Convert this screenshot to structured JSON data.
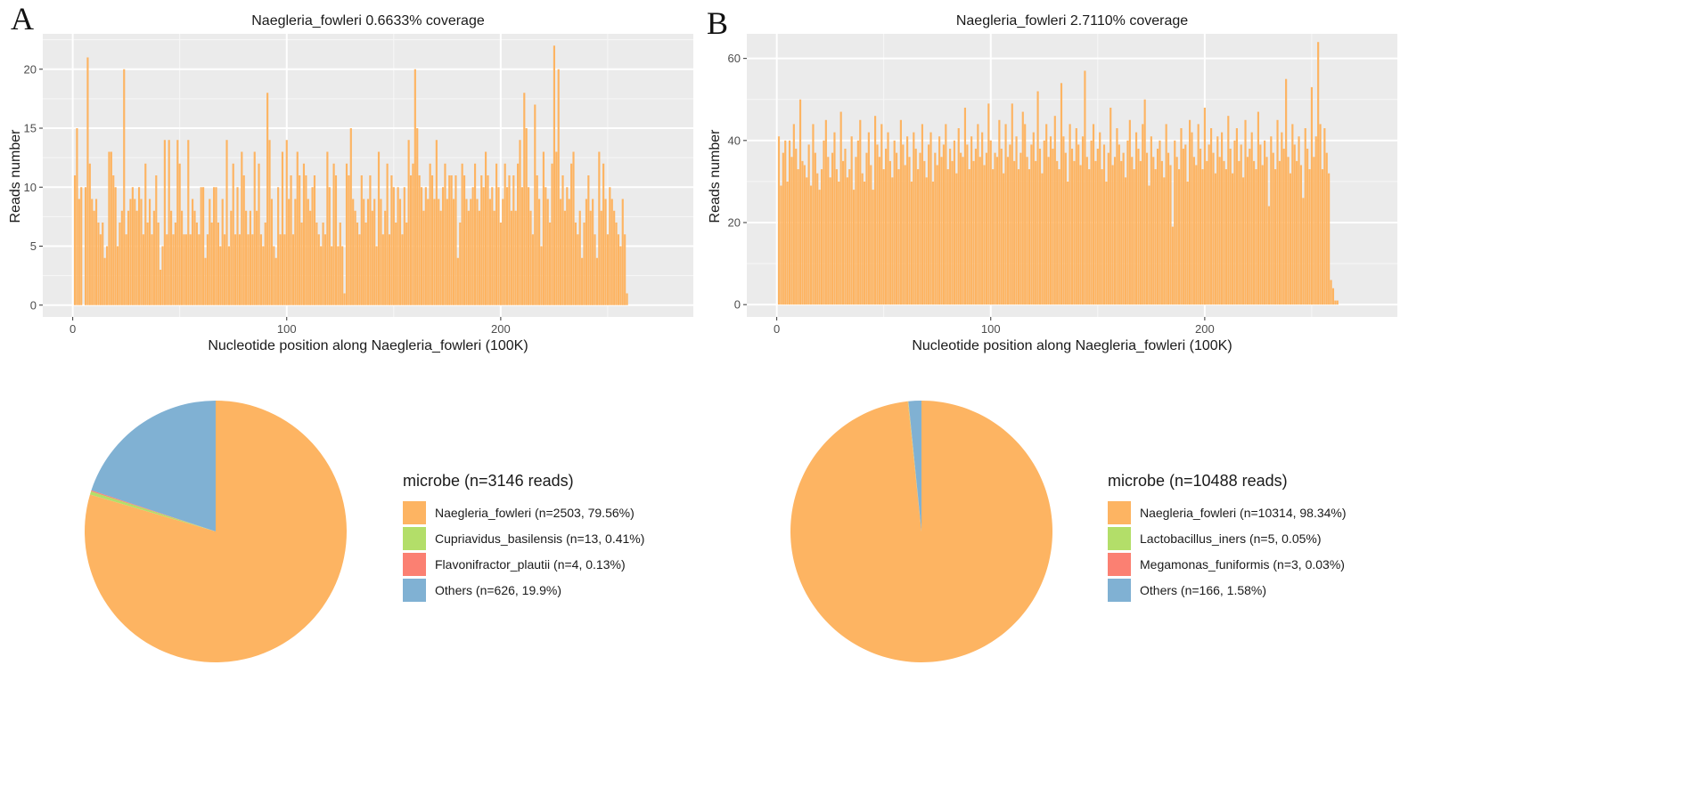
{
  "panels": [
    {
      "letter": "A"
    },
    {
      "letter": "B"
    }
  ],
  "chart_data": [
    {
      "type": "bar",
      "panel": "A",
      "title": "Naegleria_fowleri 0.6633% coverage",
      "xlabel": "Nucleotide position along Naegleria_fowleri (100K)",
      "ylabel": "Reads number",
      "xlim": [
        -14,
        290
      ],
      "ylim": [
        -1,
        23
      ],
      "xticks": [
        0,
        100,
        200
      ],
      "yticks": [
        0,
        5,
        10,
        15,
        20
      ],
      "bar_color": "#FDB462",
      "grid": true,
      "x_start": 1,
      "values": [
        11,
        15,
        9,
        10,
        0,
        10,
        21,
        12,
        9,
        8,
        9,
        7,
        6,
        7,
        4,
        5,
        13,
        13,
        11,
        10,
        5,
        7,
        8,
        20,
        6,
        8,
        9,
        10,
        9,
        8,
        10,
        9,
        6,
        12,
        7,
        9,
        6,
        8,
        11,
        7,
        3,
        5,
        14,
        6,
        14,
        8,
        6,
        7,
        14,
        12,
        8,
        6,
        6,
        14,
        6,
        9,
        8,
        7,
        6,
        10,
        10,
        4,
        6,
        9,
        7,
        10,
        10,
        7,
        5,
        9,
        6,
        14,
        5,
        8,
        12,
        6,
        10,
        6,
        13,
        11,
        8,
        6,
        8,
        6,
        13,
        8,
        12,
        6,
        5,
        7,
        18,
        14,
        9,
        5,
        4,
        10,
        6,
        13,
        6,
        14,
        9,
        11,
        6,
        9,
        13,
        11,
        7,
        12,
        11,
        9,
        8,
        10,
        11,
        7,
        6,
        5,
        7,
        6,
        13,
        10,
        5,
        12,
        11,
        5,
        7,
        5,
        1,
        12,
        11,
        15,
        9,
        8,
        7,
        6,
        11,
        9,
        7,
        9,
        11,
        8,
        9,
        5,
        13,
        9,
        6,
        8,
        12,
        6,
        11,
        10,
        7,
        10,
        9,
        6,
        10,
        7,
        14,
        11,
        12,
        20,
        15,
        11,
        10,
        8,
        10,
        9,
        12,
        11,
        9,
        14,
        9,
        8,
        10,
        12,
        9,
        11,
        11,
        9,
        11,
        4,
        7,
        12,
        11,
        9,
        8,
        9,
        10,
        12,
        9,
        8,
        11,
        10,
        13,
        11,
        9,
        10,
        8,
        12,
        10,
        7,
        9,
        12,
        10,
        11,
        8,
        11,
        8,
        12,
        14,
        10,
        18,
        15,
        10,
        8,
        6,
        17,
        11,
        9,
        5,
        13,
        10,
        9,
        7,
        12,
        22,
        13,
        20,
        9,
        11,
        8,
        10,
        9,
        12,
        13,
        7,
        6,
        8,
        4,
        7,
        9,
        11,
        8,
        9,
        6,
        4,
        13,
        8,
        12,
        9,
        6,
        10,
        9,
        8,
        7,
        6,
        5,
        9,
        6,
        1
      ],
      "pie": {
        "legend_title": "microbe (n=3146 reads)",
        "slices": [
          {
            "label": "Naegleria_fowleri (n=2503, 79.56%)",
            "value": 79.56,
            "color": "#FDB462"
          },
          {
            "label": "Cupriavidus_basilensis (n=13, 0.41%)",
            "value": 0.41,
            "color": "#B3DE69"
          },
          {
            "label": "Flavonifractor_plautii (n=4, 0.13%)",
            "value": 0.13,
            "color": "#FB8072"
          },
          {
            "label": "Others (n=626, 19.9%)",
            "value": 19.9,
            "color": "#80B1D3"
          }
        ]
      }
    },
    {
      "type": "bar",
      "panel": "B",
      "title": "Naegleria_fowleri 2.7110% coverage",
      "xlabel": "Nucleotide position along Naegleria_fowleri (100K)",
      "ylabel": "Reads number",
      "xlim": [
        -14,
        290
      ],
      "ylim": [
        -3,
        66
      ],
      "xticks": [
        0,
        100,
        200
      ],
      "yticks": [
        0,
        20,
        40,
        60
      ],
      "bar_color": "#FDB462",
      "grid": true,
      "x_start": 1,
      "values": [
        41,
        29,
        37,
        40,
        30,
        40,
        36,
        44,
        38,
        33,
        50,
        35,
        34,
        31,
        39,
        29,
        44,
        37,
        32,
        28,
        33,
        40,
        45,
        36,
        31,
        37,
        42,
        33,
        30,
        47,
        35,
        38,
        31,
        33,
        41,
        28,
        36,
        40,
        45,
        32,
        30,
        37,
        42,
        34,
        28,
        46,
        39,
        36,
        44,
        33,
        38,
        42,
        35,
        31,
        40,
        37,
        33,
        45,
        39,
        34,
        41,
        36,
        30,
        42,
        38,
        33,
        37,
        44,
        35,
        31,
        39,
        42,
        30,
        37,
        34,
        41,
        36,
        39,
        44,
        33,
        38,
        35,
        40,
        32,
        43,
        37,
        36,
        48,
        39,
        33,
        41,
        35,
        38,
        44,
        36,
        42,
        34,
        37,
        49,
        40,
        33,
        37,
        36,
        45,
        38,
        32,
        44,
        36,
        39,
        49,
        35,
        41,
        33,
        37,
        47,
        44,
        36,
        33,
        39,
        42,
        35,
        52,
        38,
        32,
        40,
        44,
        36,
        41,
        38,
        46,
        35,
        33,
        54,
        41,
        37,
        30,
        44,
        38,
        35,
        43,
        39,
        34,
        41,
        57,
        36,
        33,
        40,
        44,
        35,
        38,
        42,
        33,
        39,
        30,
        37,
        48,
        34,
        36,
        43,
        39,
        35,
        37,
        31,
        40,
        45,
        36,
        33,
        42,
        38,
        35,
        44,
        50,
        37,
        29,
        41,
        36,
        33,
        38,
        40,
        35,
        31,
        44,
        37,
        34,
        19,
        40,
        36,
        33,
        43,
        38,
        39,
        30,
        45,
        42,
        36,
        34,
        44,
        38,
        33,
        48,
        35,
        39,
        43,
        37,
        32,
        41,
        36,
        42,
        35,
        33,
        46,
        38,
        32,
        40,
        43,
        35,
        39,
        31,
        45,
        36,
        38,
        42,
        35,
        33,
        47,
        39,
        34,
        40,
        36,
        24,
        41,
        37,
        33,
        45,
        35,
        42,
        38,
        55,
        36,
        32,
        44,
        39,
        35,
        41,
        34,
        26,
        43,
        38,
        33,
        53,
        36,
        41,
        64,
        44,
        33,
        43,
        37,
        32,
        6,
        4,
        1,
        1
      ],
      "pie": {
        "legend_title": "microbe (n=10488 reads)",
        "slices": [
          {
            "label": "Naegleria_fowleri (n=10314, 98.34%)",
            "value": 98.34,
            "color": "#FDB462"
          },
          {
            "label": "Lactobacillus_iners (n=5, 0.05%)",
            "value": 0.05,
            "color": "#B3DE69"
          },
          {
            "label": "Megamonas_funiformis (n=3, 0.03%)",
            "value": 0.03,
            "color": "#FB8072"
          },
          {
            "label": "Others (n=166, 1.58%)",
            "value": 1.58,
            "color": "#80B1D3"
          }
        ]
      }
    }
  ]
}
